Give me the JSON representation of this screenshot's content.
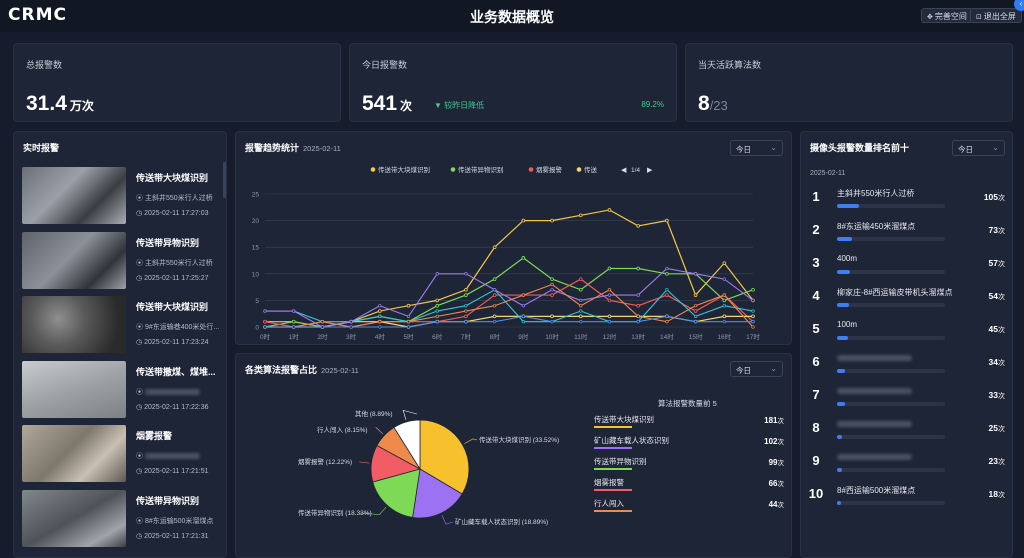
{
  "header": {
    "logo": "CRMC",
    "title": "业务数据概览",
    "btn_fullspace": "完善空间",
    "btn_exit_fullscreen": "退出全屏"
  },
  "kpis": {
    "total": {
      "label": "总报警数",
      "value": "31.4",
      "unit": "万次"
    },
    "today": {
      "label": "今日报警数",
      "value": "541",
      "unit": "次",
      "change_text": "较昨日降低",
      "change_pct": "89.2%"
    },
    "algorithms": {
      "label": "当天活跃算法数",
      "value": "8",
      "total": "/23"
    }
  },
  "realtime": {
    "title": "实时报警",
    "items": [
      {
        "title": "传送带大块煤识别",
        "location": "主斜井550米行人过桥",
        "time": "2025-02-11 17:27:03"
      },
      {
        "title": "传送带异物识别",
        "location": "主斜井550米行人过桥",
        "time": "2025-02-11 17:25:27"
      },
      {
        "title": "传送带大块煤识别",
        "location": "9#东运输巷400米处行...",
        "time": "2025-02-11 17:23:24"
      },
      {
        "title": "传送带撒煤、煤堆...",
        "location": "",
        "time": "2025-02-11 17:22:36"
      },
      {
        "title": "烟雾报警",
        "location": "",
        "time": "2025-02-11 17:21:51"
      },
      {
        "title": "传送带异物识别",
        "location": "8#东运输500米溜煤点",
        "time": "2025-02-11 17:21:31"
      }
    ]
  },
  "trend": {
    "title": "报警趋势统计",
    "date": "2025-02-11",
    "select": "今日",
    "page": "1/4"
  },
  "chart_data": {
    "type": "line",
    "x": [
      "0时",
      "1时",
      "2时",
      "3时",
      "4时",
      "5时",
      "6时",
      "7时",
      "8时",
      "9时",
      "10时",
      "11时",
      "12时",
      "13时",
      "14时",
      "15时",
      "16时",
      "17时"
    ],
    "ylim": [
      0,
      25
    ],
    "yticks": [
      0,
      5,
      10,
      15,
      20,
      25
    ],
    "grid": true,
    "legend_position": "top",
    "series": [
      {
        "name": "传送带大块煤识别",
        "color": "#f5c842",
        "values": [
          1,
          1,
          0,
          1,
          3,
          4,
          5,
          7,
          15,
          20,
          20,
          21,
          22,
          19,
          20,
          6,
          12,
          5
        ]
      },
      {
        "name": "传送带异物识别",
        "color": "#7ed957",
        "values": [
          0,
          1,
          0,
          1,
          2,
          1,
          4,
          6,
          9,
          13,
          9,
          7,
          11,
          11,
          10,
          10,
          5,
          7
        ]
      },
      {
        "name": "烟雾报警",
        "color": "#f05a5a",
        "values": [
          1,
          0,
          1,
          0,
          1,
          1,
          1,
          2,
          6,
          6,
          6,
          9,
          5,
          4,
          6,
          3,
          6,
          1
        ]
      },
      {
        "name": "传送",
        "color": "#f5d76e",
        "values": [
          0,
          0,
          0,
          1,
          1,
          0,
          1,
          1,
          2,
          2,
          2,
          2,
          2,
          2,
          2,
          1,
          2,
          2
        ]
      }
    ]
  },
  "pie": {
    "title": "各类算法报警占比",
    "date": "2025-02-11",
    "select": "今日",
    "rank_title": "算法报警数量前 5"
  },
  "pie_data": {
    "type": "pie",
    "slices": [
      {
        "label": "传送带大块煤识别 (33.52%)",
        "value": 33.52,
        "color": "#f7c12e"
      },
      {
        "label": "矿山藏车载人状态识别 (18.89%)",
        "value": 18.89,
        "color": "#9d72f2"
      },
      {
        "label": "传送带异物识别 (18.33%)",
        "value": 18.33,
        "color": "#7ed957"
      },
      {
        "label": "烟雾报警 (12.22%)",
        "value": 12.22,
        "color": "#f25c64"
      },
      {
        "label": "行人闯入 (8.15%)",
        "value": 8.15,
        "color": "#f08a4b"
      },
      {
        "label": "其他 (8.89%)",
        "value": 8.89,
        "color": "#ffffff"
      }
    ]
  },
  "top5": [
    {
      "name": "传送带大块煤识别",
      "count": "181",
      "unit": "次",
      "color": "#f7c12e"
    },
    {
      "name": "矿山藏车载人状态识别",
      "count": "102",
      "unit": "次",
      "color": "#9d72f2"
    },
    {
      "name": "传送带异物识别",
      "count": "99",
      "unit": "次",
      "color": "#7ed957"
    },
    {
      "name": "烟雾报警",
      "count": "66",
      "unit": "次",
      "color": "#f25c64"
    },
    {
      "name": "行人闯入",
      "count": "44",
      "unit": "次",
      "color": "#f08a4b"
    }
  ],
  "ranking": {
    "title": "摄像头报警数量排名前十",
    "select": "今日",
    "date": "2025-02-11",
    "items": [
      {
        "rank": "1",
        "name": "主斜井550米行人过桥",
        "count": "105",
        "unit": "次",
        "pct": 0.2
      },
      {
        "rank": "2",
        "name": "8#东运输450米溜煤点",
        "count": "73",
        "unit": "次",
        "pct": 0.14
      },
      {
        "rank": "3",
        "name": "400m",
        "count": "57",
        "unit": "次",
        "pct": 0.12
      },
      {
        "rank": "4",
        "name": "柳家庄-8#西运输皮带机头溜煤点",
        "count": "54",
        "unit": "次",
        "pct": 0.11
      },
      {
        "rank": "5",
        "name": "100m",
        "count": "45",
        "unit": "次",
        "pct": 0.1
      },
      {
        "rank": "6",
        "name": "",
        "count": "34",
        "unit": "次",
        "pct": 0.07
      },
      {
        "rank": "7",
        "name": "",
        "count": "33",
        "unit": "次",
        "pct": 0.07
      },
      {
        "rank": "8",
        "name": "",
        "count": "25",
        "unit": "次",
        "pct": 0.05
      },
      {
        "rank": "9",
        "name": "",
        "count": "23",
        "unit": "次",
        "pct": 0.05
      },
      {
        "rank": "10",
        "name": "8#西运输500米溜煤点",
        "count": "18",
        "unit": "次",
        "pct": 0.04
      }
    ]
  }
}
